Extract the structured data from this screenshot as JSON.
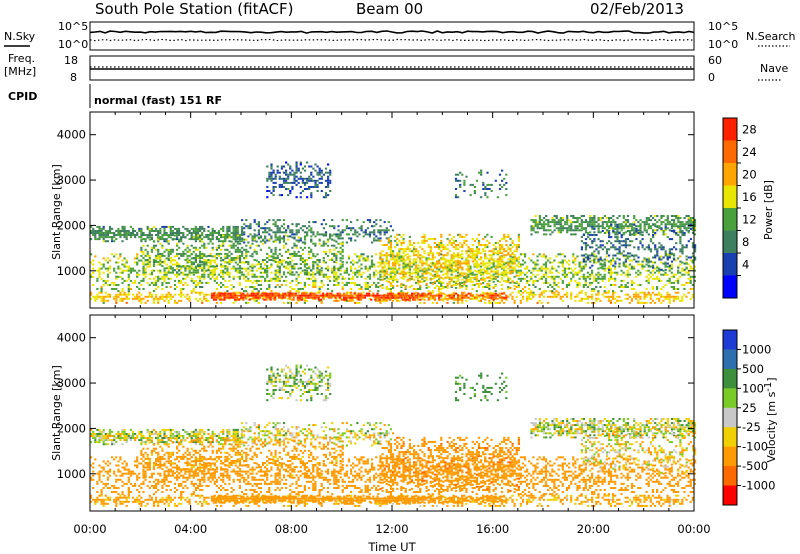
{
  "header": {
    "station": "South Pole Station (fitACF)",
    "beam": "Beam 00",
    "date": "02/Feb/2013"
  },
  "strips": {
    "nsky_label": "N.Sky",
    "nsearch_label": "N.Search",
    "noise_ticks_left": [
      "10^5",
      "10^0"
    ],
    "noise_ticks_right": [
      "10^5",
      "10^0"
    ],
    "freq_label_top": "Freq.",
    "freq_label_unit": "[MHz]",
    "freq_ticks": [
      "18",
      "8"
    ],
    "nave_label": "Nave",
    "nave_ticks": [
      "60",
      "0"
    ],
    "cpid_label": "CPID",
    "cpid_value": "normal (fast) 151 RF"
  },
  "colors": {
    "power_scale": [
      "#0000ff",
      "#1a3fb0",
      "#3d7f5e",
      "#4aa03c",
      "#e8e600",
      "#ffa500",
      "#ff6a00",
      "#ff2000"
    ],
    "velocity_scale": [
      "#1e3bd6",
      "#2f6fae",
      "#3d8f3d",
      "#7acb28",
      "#c8c8c8",
      "#f0d000",
      "#ff9a00",
      "#ff6a00",
      "#ff0000"
    ]
  },
  "chart_data": [
    {
      "type": "heatmap",
      "name": "Power",
      "ylabel": "Slant Range [km]",
      "yticks": [
        "4000",
        "3000",
        "2000",
        "1000"
      ],
      "ylim": [
        180,
        4500
      ],
      "xlim": [
        0,
        24
      ],
      "colorbar_label": "Power [dB]",
      "colorbar_ticks": [
        "28",
        "24",
        "20",
        "16",
        "12",
        "8",
        "4"
      ],
      "colorbar_range": [
        0,
        32
      ]
    },
    {
      "type": "heatmap",
      "name": "Velocity",
      "ylabel": "Slant Range [km]",
      "yticks": [
        "4000",
        "3000",
        "2000",
        "1000"
      ],
      "ylim": [
        180,
        4500
      ],
      "xlim": [
        0,
        24
      ],
      "xlabel": "Time UT",
      "xticks": [
        "00:00",
        "04:00",
        "08:00",
        "12:00",
        "16:00",
        "20:00",
        "00:00"
      ],
      "colorbar_label": "Velocity [m s",
      "colorbar_unit_exp": "-1",
      "colorbar_unit_close": "]",
      "colorbar_ticks": [
        "1000",
        "500",
        "100",
        "25",
        "-25",
        "-100",
        "-500",
        "-1000"
      ]
    }
  ]
}
